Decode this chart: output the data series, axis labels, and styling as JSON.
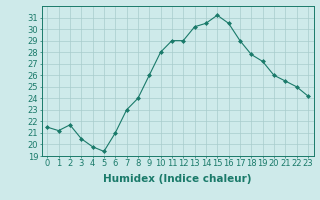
{
  "x": [
    0,
    1,
    2,
    3,
    4,
    5,
    6,
    7,
    8,
    9,
    10,
    11,
    12,
    13,
    14,
    15,
    16,
    17,
    18,
    19,
    20,
    21,
    22,
    23
  ],
  "y": [
    21.5,
    21.2,
    21.7,
    20.5,
    19.8,
    19.4,
    21.0,
    23.0,
    24.0,
    26.0,
    28.0,
    29.0,
    29.0,
    30.2,
    30.5,
    31.2,
    30.5,
    29.0,
    27.8,
    27.2,
    26.0,
    25.5,
    25.0,
    24.2
  ],
  "xlabel": "Humidex (Indice chaleur)",
  "ylim": [
    19,
    32
  ],
  "xlim": [
    -0.5,
    23.5
  ],
  "yticks": [
    19,
    20,
    21,
    22,
    23,
    24,
    25,
    26,
    27,
    28,
    29,
    30,
    31
  ],
  "xticks": [
    0,
    1,
    2,
    3,
    4,
    5,
    6,
    7,
    8,
    9,
    10,
    11,
    12,
    13,
    14,
    15,
    16,
    17,
    18,
    19,
    20,
    21,
    22,
    23
  ],
  "line_color": "#1a7a6a",
  "marker": "D",
  "marker_size": 2,
  "bg_color": "#ceeaea",
  "grid_color": "#a8cccc",
  "tick_label_fontsize": 6.0,
  "xlabel_fontsize": 7.5,
  "spine_color": "#1a7a6a"
}
